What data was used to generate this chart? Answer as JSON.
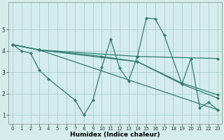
{
  "xlabel": "Humidex (Indice chaleur)",
  "bg_color": "#d4edec",
  "grid_color": "#aacccc",
  "line_color": "#2e7d6e",
  "xlim": [
    -0.5,
    23.5
  ],
  "ylim": [
    0.6,
    6.3
  ],
  "xticks": [
    0,
    1,
    2,
    3,
    4,
    5,
    6,
    7,
    8,
    9,
    10,
    11,
    12,
    13,
    14,
    15,
    16,
    17,
    18,
    19,
    20,
    21,
    22,
    23
  ],
  "yticks": [
    1,
    2,
    3,
    4,
    5
  ],
  "series": [
    {
      "x": [
        0,
        1,
        2,
        3,
        4,
        7,
        8,
        9,
        10,
        11,
        12,
        13,
        14,
        15,
        16,
        17,
        19,
        20,
        21,
        22,
        23
      ],
      "y": [
        4.3,
        4.0,
        3.9,
        3.1,
        2.7,
        1.7,
        1.0,
        1.7,
        3.25,
        4.55,
        3.2,
        2.6,
        3.75,
        5.55,
        5.5,
        4.75,
        2.45,
        3.65,
        1.35,
        1.6,
        1.25
      ]
    },
    {
      "x": [
        0,
        3,
        23
      ],
      "y": [
        4.3,
        4.05,
        1.25
      ]
    },
    {
      "x": [
        0,
        3,
        14,
        23
      ],
      "y": [
        4.3,
        4.05,
        3.75,
        3.65
      ]
    },
    {
      "x": [
        0,
        3,
        14,
        19,
        23
      ],
      "y": [
        4.3,
        4.05,
        3.5,
        2.5,
        1.95
      ]
    },
    {
      "x": [
        0,
        3,
        10,
        14,
        19,
        23
      ],
      "y": [
        4.3,
        4.05,
        3.75,
        3.5,
        2.45,
        1.8
      ]
    }
  ]
}
